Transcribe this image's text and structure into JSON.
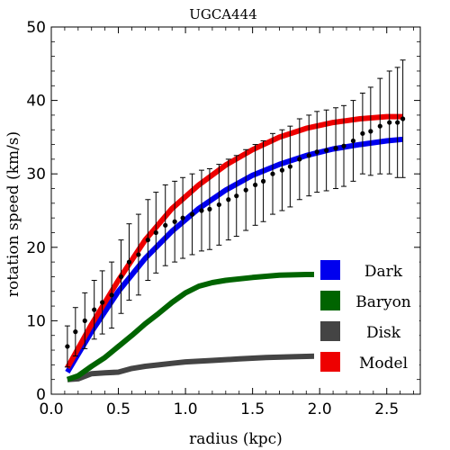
{
  "chart_data": {
    "type": "line",
    "title": "UGCA444",
    "xlabel": "radius (kpc)",
    "ylabel": "rotation speed (km/s)",
    "xlim": [
      0,
      2.75
    ],
    "ylim": [
      0,
      50
    ],
    "x_ticks": [
      0.0,
      0.5,
      1.0,
      1.5,
      2.0,
      2.5
    ],
    "x_tick_labels": [
      "0.0",
      "0.5",
      "1.0",
      "1.5",
      "2.0",
      "2.5"
    ],
    "y_ticks": [
      0,
      10,
      20,
      30,
      40,
      50
    ],
    "y_tick_labels": [
      "0",
      "10",
      "20",
      "30",
      "40",
      "50"
    ],
    "legend_position": "bottom-right",
    "series": [
      {
        "name": "Dark",
        "color": "#0000ee",
        "x": [
          0.12,
          0.3,
          0.5,
          0.7,
          0.9,
          1.1,
          1.3,
          1.5,
          1.7,
          1.9,
          2.1,
          2.3,
          2.5,
          2.62
        ],
        "y": [
          3.0,
          8.5,
          14.0,
          18.5,
          22.2,
          25.3,
          27.8,
          29.8,
          31.3,
          32.5,
          33.4,
          34.0,
          34.5,
          34.7
        ]
      },
      {
        "name": "Baryon",
        "color": "#006400",
        "x": [
          0.12,
          0.2,
          0.3,
          0.4,
          0.5,
          0.6,
          0.7,
          0.8,
          0.9,
          1.0,
          1.1,
          1.2,
          1.3,
          1.5,
          1.7,
          1.9,
          2.1,
          2.3,
          2.5,
          2.62
        ],
        "y": [
          2.0,
          2.5,
          3.8,
          5.0,
          6.5,
          8.0,
          9.6,
          11.0,
          12.5,
          13.8,
          14.7,
          15.2,
          15.5,
          15.9,
          16.2,
          16.3,
          16.3,
          16.1,
          15.5,
          15.0
        ]
      },
      {
        "name": "Disk",
        "color": "#444444",
        "x": [
          0.12,
          0.2,
          0.3,
          0.4,
          0.5,
          0.6,
          0.7,
          0.8,
          0.9,
          1.0,
          1.2,
          1.4,
          1.6,
          1.8,
          2.0,
          2.2,
          2.4,
          2.62
        ],
        "y": [
          2.0,
          2.1,
          2.8,
          2.9,
          3.0,
          3.5,
          3.8,
          4.0,
          4.2,
          4.4,
          4.6,
          4.8,
          5.0,
          5.1,
          5.2,
          5.3,
          5.3,
          5.3
        ]
      },
      {
        "name": "Model",
        "color": "#ee0000",
        "x": [
          0.12,
          0.3,
          0.5,
          0.7,
          0.9,
          1.1,
          1.3,
          1.5,
          1.7,
          1.9,
          2.1,
          2.3,
          2.5,
          2.62
        ],
        "y": [
          3.6,
          9.5,
          15.5,
          21.0,
          25.3,
          28.5,
          31.2,
          33.3,
          35.0,
          36.2,
          37.0,
          37.5,
          37.8,
          37.8
        ]
      }
    ],
    "observations": {
      "x": [
        0.12,
        0.18,
        0.25,
        0.32,
        0.38,
        0.45,
        0.52,
        0.58,
        0.65,
        0.72,
        0.78,
        0.85,
        0.92,
        0.98,
        1.05,
        1.12,
        1.18,
        1.25,
        1.32,
        1.38,
        1.45,
        1.52,
        1.58,
        1.65,
        1.72,
        1.78,
        1.85,
        1.92,
        1.98,
        2.05,
        2.12,
        2.18,
        2.25,
        2.32,
        2.38,
        2.45,
        2.52,
        2.58,
        2.62
      ],
      "y": [
        6.5,
        8.5,
        10.0,
        11.5,
        12.5,
        13.5,
        16.0,
        18.0,
        19.0,
        21.0,
        22.0,
        23.0,
        23.5,
        24.0,
        24.5,
        25.0,
        25.2,
        25.8,
        26.5,
        27.0,
        27.8,
        28.5,
        29.0,
        30.0,
        30.5,
        31.0,
        32.0,
        32.5,
        33.0,
        33.2,
        33.5,
        33.8,
        34.5,
        35.5,
        35.8,
        36.5,
        37.0,
        37.0,
        37.5
      ],
      "err": [
        2.8,
        3.3,
        3.8,
        4.0,
        4.3,
        4.5,
        5.0,
        5.2,
        5.5,
        5.5,
        5.5,
        5.5,
        5.5,
        5.5,
        5.5,
        5.5,
        5.5,
        5.5,
        5.5,
        5.5,
        5.5,
        5.5,
        5.5,
        5.5,
        5.5,
        5.5,
        5.5,
        5.5,
        5.5,
        5.5,
        5.5,
        5.5,
        5.5,
        5.5,
        6.0,
        6.5,
        7.0,
        7.5,
        8.0
      ]
    }
  }
}
